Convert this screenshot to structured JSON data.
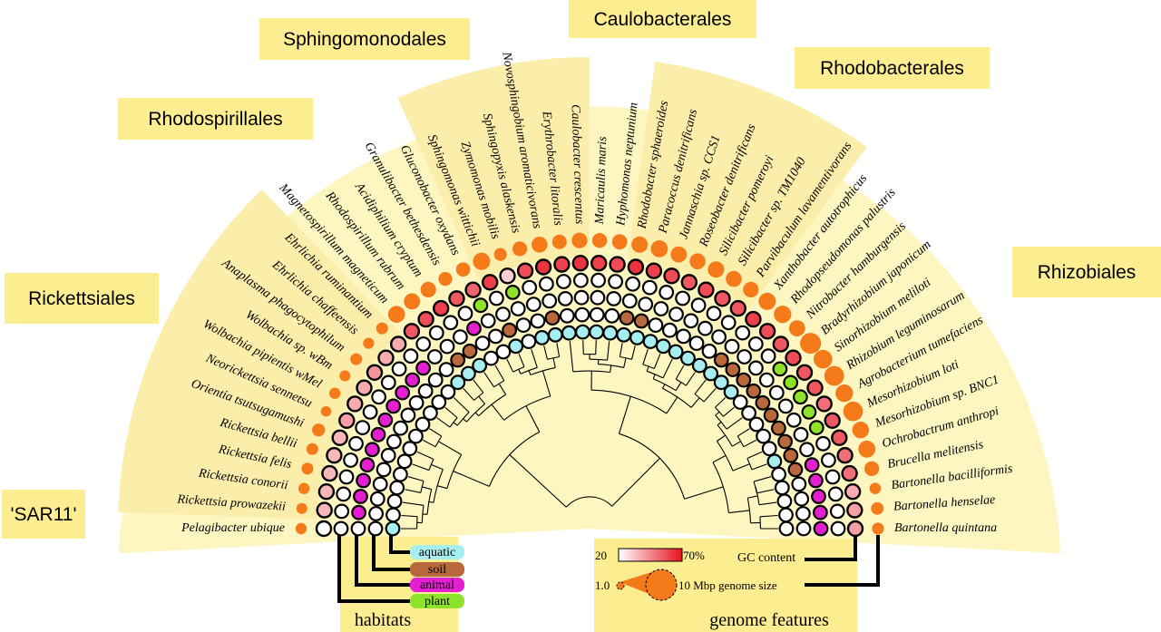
{
  "groups": [
    {
      "name": "'SAR11'",
      "from": 0,
      "to": 0
    },
    {
      "name": "Rickettsiales",
      "from": 1,
      "to": 11
    },
    {
      "name": "Rhodospirillales",
      "from": 12,
      "to": 16
    },
    {
      "name": "Sphingomonodales",
      "from": 17,
      "to": 22
    },
    {
      "name": "Caulobacterales",
      "from": 23,
      "to": 24
    },
    {
      "name": "Rhodobacterales",
      "from": 25,
      "to": 31
    },
    {
      "name": "Rhizobiales",
      "from": 32,
      "to": 46
    }
  ],
  "taxa": [
    {
      "name": "Pelagibacter ubique",
      "hab": [
        1,
        0,
        0,
        0
      ],
      "gc": 0.0,
      "size": 1.3
    },
    {
      "name": "Rickettsia prowazekii",
      "hab": [
        0,
        0,
        1,
        0
      ],
      "gc": 0.3,
      "size": 1.1
    },
    {
      "name": "Rickettsia conorii",
      "hab": [
        0,
        0,
        1,
        0
      ],
      "gc": 0.3,
      "size": 1.3
    },
    {
      "name": "Rickettsia felis",
      "hab": [
        0,
        0,
        1,
        0
      ],
      "gc": 0.3,
      "size": 1.5
    },
    {
      "name": "Rickettsia bellii",
      "hab": [
        0,
        0,
        1,
        0
      ],
      "gc": 0.3,
      "size": 1.5
    },
    {
      "name": "Orientia tsutsugamushi",
      "hab": [
        0,
        0,
        1,
        0
      ],
      "gc": 0.3,
      "size": 2.1
    },
    {
      "name": "Neorickettsia sennetsu",
      "hab": [
        0,
        0,
        1,
        0
      ],
      "gc": 0.4,
      "size": 0.9
    },
    {
      "name": "Wolbachia pipientis wMel",
      "hab": [
        0,
        0,
        1,
        0
      ],
      "gc": 0.35,
      "size": 1.3
    },
    {
      "name": "Wolbachia sp. wBm",
      "hab": [
        0,
        0,
        1,
        0
      ],
      "gc": 0.35,
      "size": 1.1
    },
    {
      "name": "Anaplasma phagocytophilum",
      "hab": [
        0,
        0,
        1,
        0
      ],
      "gc": 0.45,
      "size": 1.5
    },
    {
      "name": "Ehrlichia chaffeensis",
      "hab": [
        0,
        0,
        1,
        0
      ],
      "gc": 0.35,
      "size": 1.2
    },
    {
      "name": "Ehrlichia ruminantium",
      "hab": [
        0,
        0,
        1,
        0
      ],
      "gc": 0.35,
      "size": 1.5
    },
    {
      "name": "Magnetospirillum magneticum",
      "hab": [
        1,
        0,
        0,
        0
      ],
      "gc": 0.7,
      "size": 5.0
    },
    {
      "name": "Rhodospirillum rubrum",
      "hab": [
        1,
        1,
        0,
        0
      ],
      "gc": 0.75,
      "size": 4.4
    },
    {
      "name": "Acidiphilium cryptum",
      "hab": [
        1,
        1,
        0,
        0
      ],
      "gc": 0.8,
      "size": 4.0
    },
    {
      "name": "Granulibacter bethesdensis",
      "hab": [
        0,
        0,
        1,
        0
      ],
      "gc": 0.7,
      "size": 2.7
    },
    {
      "name": "Gluconobacter oxydans",
      "hab": [
        0,
        0,
        0,
        1
      ],
      "gc": 0.65,
      "size": 2.9
    },
    {
      "name": "Sphingomonas wittichii",
      "hab": [
        1,
        1,
        0,
        0
      ],
      "gc": 0.8,
      "size": 5.4
    },
    {
      "name": "Zymomonas mobilis",
      "hab": [
        0,
        0,
        0,
        1
      ],
      "gc": 0.2,
      "size": 2.1
    },
    {
      "name": "Sphingopyxis alaskensis",
      "hab": [
        1,
        0,
        0,
        0
      ],
      "gc": 0.75,
      "size": 3.3
    },
    {
      "name": "Novosphingobium aromaticivorans",
      "hab": [
        1,
        1,
        0,
        0
      ],
      "gc": 0.85,
      "size": 4.2
    },
    {
      "name": "Erythrobacter litoralis",
      "hab": [
        1,
        0,
        0,
        0
      ],
      "gc": 0.8,
      "size": 3.1
    },
    {
      "name": "Caulobacter crescentus",
      "hab": [
        1,
        0,
        0,
        0
      ],
      "gc": 0.85,
      "size": 4.0
    },
    {
      "name": "Maricaulis maris",
      "hab": [
        1,
        0,
        0,
        0
      ],
      "gc": 0.8,
      "size": 3.4
    },
    {
      "name": "Hyphomonas neptunium",
      "hab": [
        1,
        0,
        0,
        0
      ],
      "gc": 0.75,
      "size": 3.7
    },
    {
      "name": "Rhodobacter sphaeroides",
      "hab": [
        1,
        1,
        0,
        0
      ],
      "gc": 0.85,
      "size": 4.6
    },
    {
      "name": "Paracoccus denitrificans",
      "hab": [
        1,
        1,
        0,
        0
      ],
      "gc": 0.8,
      "size": 5.2
    },
    {
      "name": "Jannaschia sp. CCS1",
      "hab": [
        1,
        0,
        0,
        0
      ],
      "gc": 0.75,
      "size": 4.4
    },
    {
      "name": "Roseobacter denitrificans",
      "hab": [
        1,
        0,
        0,
        0
      ],
      "gc": 0.7,
      "size": 4.3
    },
    {
      "name": "Silicibacter pomeroyi",
      "hab": [
        1,
        0,
        0,
        0
      ],
      "gc": 0.75,
      "size": 4.6
    },
    {
      "name": "Silicibacter sp. TM1040",
      "hab": [
        1,
        0,
        0,
        0
      ],
      "gc": 0.7,
      "size": 4.2
    },
    {
      "name": "Parvibaculum lavamentivorans",
      "hab": [
        1,
        0,
        0,
        0
      ],
      "gc": 0.7,
      "size": 3.9
    },
    {
      "name": "Xanthobacter autotrophicus",
      "hab": [
        1,
        1,
        0,
        0
      ],
      "gc": 0.8,
      "size": 5.3
    },
    {
      "name": "Rhodopseudomonas palustris",
      "hab": [
        1,
        1,
        0,
        0
      ],
      "gc": 0.75,
      "size": 5.5
    },
    {
      "name": "Nitrobacter hamburgensis",
      "hab": [
        1,
        1,
        0,
        0
      ],
      "gc": 0.7,
      "size": 4.4
    },
    {
      "name": "Bradyrhizobium japonicum",
      "hab": [
        0,
        1,
        0,
        1
      ],
      "gc": 0.75,
      "size": 9.1
    },
    {
      "name": "Sinorhizobium meliloti",
      "hab": [
        0,
        1,
        0,
        1
      ],
      "gc": 0.7,
      "size": 6.7
    },
    {
      "name": "Rhizobium leguminosarum",
      "hab": [
        0,
        1,
        0,
        1
      ],
      "gc": 0.7,
      "size": 7.8
    },
    {
      "name": "Agrobacterium tumefaciens",
      "hab": [
        0,
        1,
        0,
        1
      ],
      "gc": 0.6,
      "size": 5.7
    },
    {
      "name": "Mesorhizobium loti",
      "hab": [
        0,
        1,
        0,
        1
      ],
      "gc": 0.7,
      "size": 7.6
    },
    {
      "name": "Mesorhizobium sp. BNC1",
      "hab": [
        1,
        1,
        0,
        0
      ],
      "gc": 0.7,
      "size": 4.9
    },
    {
      "name": "Ochrobactrum anthropi",
      "hab": [
        0,
        1,
        1,
        0
      ],
      "gc": 0.6,
      "size": 5.2
    },
    {
      "name": "Brucella melitensis",
      "hab": [
        0,
        0,
        1,
        0
      ],
      "gc": 0.6,
      "size": 3.3
    },
    {
      "name": "Bartonella bacilliformis",
      "hab": [
        0,
        0,
        1,
        0
      ],
      "gc": 0.35,
      "size": 1.4
    },
    {
      "name": "Bartonella henselae",
      "hab": [
        0,
        0,
        1,
        0
      ],
      "gc": 0.4,
      "size": 1.9
    },
    {
      "name": "Bartonella quintana",
      "hab": [
        0,
        0,
        1,
        0
      ],
      "gc": 0.4,
      "size": 1.6
    }
  ],
  "habitats": {
    "title": "habitats",
    "items": [
      {
        "label": "aquatic",
        "color": "#a6eef0"
      },
      {
        "label": "soil",
        "color": "#b8683a"
      },
      {
        "label": "animal",
        "color": "#e61ed2"
      },
      {
        "label": "plant",
        "color": "#8ee32a"
      }
    ]
  },
  "genome": {
    "title": "genome features",
    "gc_label": "GC content",
    "gc_min": "20",
    "gc_max": "70%",
    "size_label": "10 Mbp genome size",
    "size_min": "1.0",
    "gc_color_low": "#ffffff",
    "gc_color_high": "#e8101e",
    "size_color": "#f47a1a"
  },
  "colors": {
    "fan": "#fdf6c0",
    "clade_band": "#fbeeaa",
    "group_box": "#fbed90"
  }
}
